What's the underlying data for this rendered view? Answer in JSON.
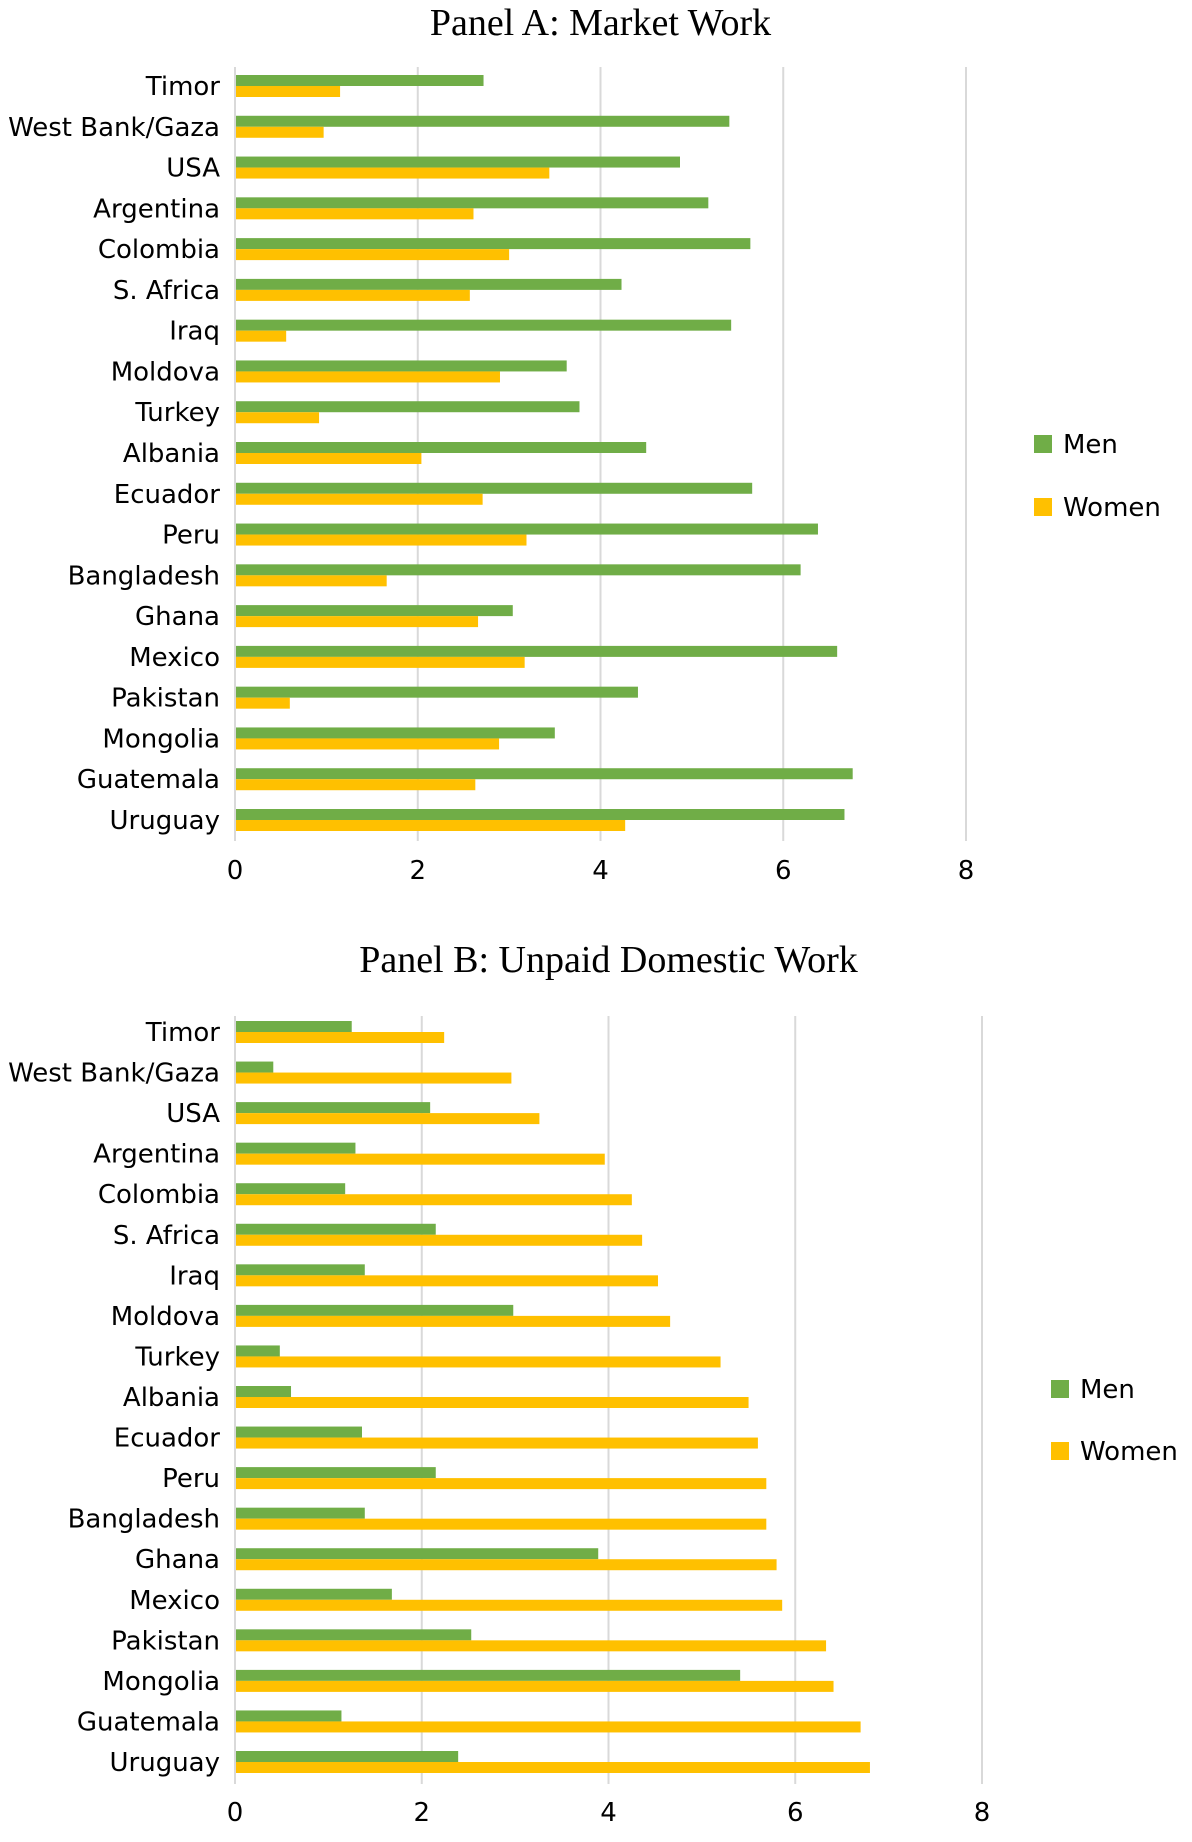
{
  "colors": {
    "men": "#70ad47",
    "women": "#ffc000",
    "grid": "#d9d9d9"
  },
  "chart_data": [
    {
      "type": "bar",
      "orientation": "horizontal",
      "title": "Panel A: Market Work",
      "categories": [
        "Timor",
        "West Bank/Gaza",
        "USA",
        "Argentina",
        "Colombia",
        "S. Africa",
        "Iraq",
        "Moldova",
        "Turkey",
        "Albania",
        "Ecuador",
        "Peru",
        "Bangladesh",
        "Ghana",
        "Mexico",
        "Pakistan",
        "Mongolia",
        "Guatemala",
        "Uruguay"
      ],
      "series": [
        {
          "name": "Men",
          "values": [
            2.72,
            5.41,
            4.87,
            5.18,
            5.64,
            4.23,
            5.43,
            3.63,
            3.77,
            4.5,
            5.66,
            6.38,
            6.19,
            3.04,
            6.59,
            4.41,
            3.5,
            6.76,
            6.67
          ]
        },
        {
          "name": "Women",
          "values": [
            1.15,
            0.97,
            3.44,
            2.61,
            3.0,
            2.57,
            0.56,
            2.9,
            0.92,
            2.04,
            2.71,
            3.19,
            1.66,
            2.66,
            3.17,
            0.6,
            2.89,
            2.63,
            4.27
          ]
        }
      ],
      "xlim": [
        0,
        8
      ],
      "xticks": [
        "0",
        "2",
        "4",
        "6",
        "8"
      ],
      "grid": true,
      "legend": "right"
    },
    {
      "type": "bar",
      "orientation": "horizontal",
      "title": "Panel B: Unpaid Domestic Work",
      "categories": [
        "Timor",
        "West Bank/Gaza",
        "USA",
        "Argentina",
        "Colombia",
        "S. Africa",
        "Iraq",
        "Moldova",
        "Turkey",
        "Albania",
        "Ecuador",
        "Peru",
        "Bangladesh",
        "Ghana",
        "Mexico",
        "Pakistan",
        "Mongolia",
        "Guatemala",
        "Uruguay"
      ],
      "series": [
        {
          "name": "Men",
          "values": [
            1.25,
            0.41,
            2.09,
            1.29,
            1.18,
            2.15,
            1.39,
            2.98,
            0.48,
            0.6,
            1.36,
            2.15,
            1.39,
            3.89,
            1.68,
            2.53,
            5.41,
            1.14,
            2.39
          ]
        },
        {
          "name": "Women",
          "values": [
            2.24,
            2.96,
            3.26,
            3.96,
            4.25,
            4.36,
            4.53,
            4.66,
            5.2,
            5.5,
            5.6,
            5.69,
            5.69,
            5.8,
            5.86,
            6.33,
            6.41,
            6.7,
            6.8
          ]
        }
      ],
      "xlim": [
        0,
        8
      ],
      "xticks": [
        "0",
        "2",
        "4",
        "6",
        "8"
      ],
      "grid": true,
      "legend": "right"
    }
  ]
}
